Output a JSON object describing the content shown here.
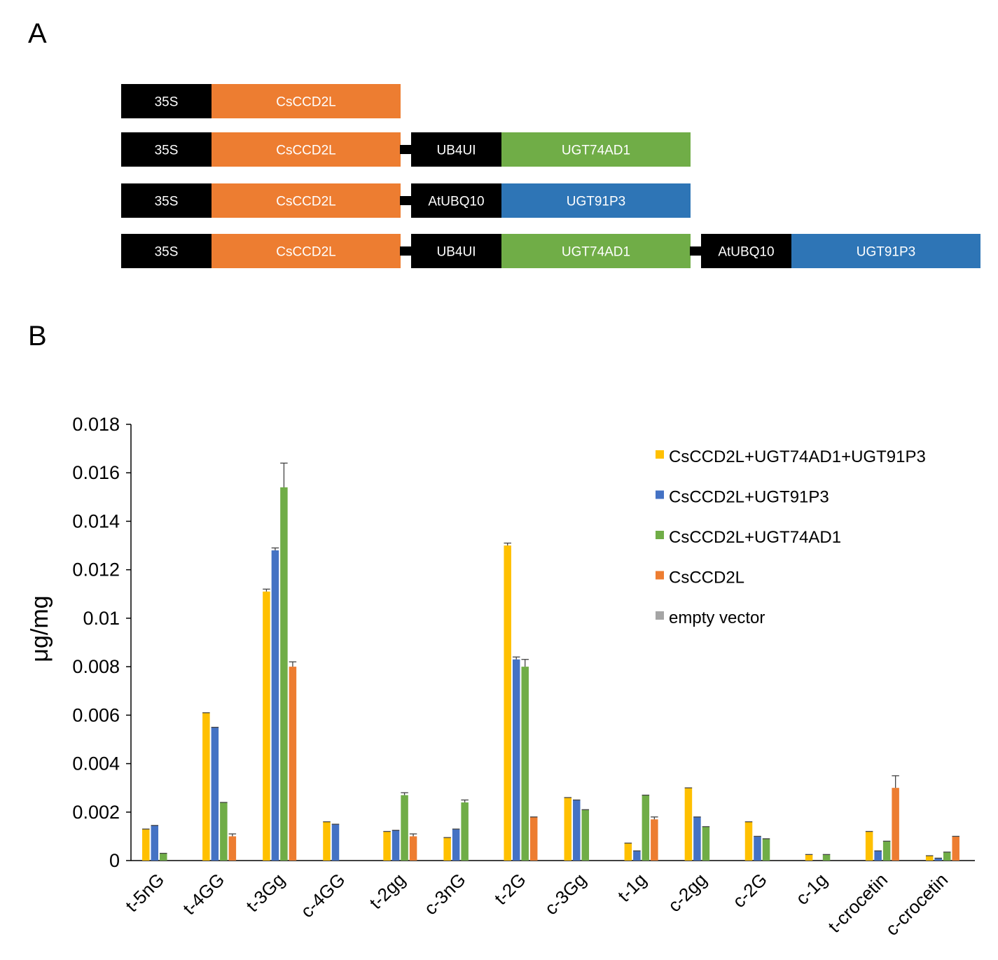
{
  "panels": {
    "a": "A",
    "b": "B"
  },
  "constructs": [
    [
      {
        "label": "35S",
        "type": "promoter"
      },
      {
        "label": "CsCCD2L",
        "type": "ccd"
      }
    ],
    [
      {
        "label": "35S",
        "type": "promoter"
      },
      {
        "label": "CsCCD2L",
        "type": "ccd"
      },
      {
        "label": "UB4UI",
        "type": "promoter"
      },
      {
        "label": "UGT74AD1",
        "type": "ugt74"
      }
    ],
    [
      {
        "label": "35S",
        "type": "promoter"
      },
      {
        "label": "CsCCD2L",
        "type": "ccd"
      },
      {
        "label": "AtUBQ10",
        "type": "promoter"
      },
      {
        "label": "UGT91P3",
        "type": "ugt91"
      }
    ],
    [
      {
        "label": "35S",
        "type": "promoter"
      },
      {
        "label": "CsCCD2L",
        "type": "ccd"
      },
      {
        "label": "UB4UI",
        "type": "promoter"
      },
      {
        "label": "UGT74AD1",
        "type": "ugt74"
      },
      {
        "label": "AtUBQ10",
        "type": "promoter"
      },
      {
        "label": "UGT91P3",
        "type": "ugt91"
      }
    ]
  ],
  "construct_colors": {
    "promoter": "#000000",
    "ccd": "#ED7D31",
    "ugt74": "#70AD47",
    "ugt91": "#2E75B6"
  },
  "chart_data": {
    "type": "bar",
    "ylabel": "μg/mg",
    "ylim": [
      0,
      0.018
    ],
    "yticks": [
      "0",
      "0.002",
      "0.004",
      "0.006",
      "0.008",
      "0.01",
      "0.012",
      "0.014",
      "0.016",
      "0.018"
    ],
    "legend_position": "top-right",
    "categories": [
      "t-5nG",
      "t-4GG",
      "t-3Gg",
      "c-4GG",
      "t-2gg",
      "c-3nG",
      "t-2G",
      "c-3Gg",
      "t-1g",
      "c-2gg",
      "c-2G",
      "c-1g",
      "t-crocetin",
      "c-crocetin"
    ],
    "series": [
      {
        "name": "CsCCD2L+UGT74AD1+UGT91P3",
        "color": "#FFC000",
        "values": [
          0.0013,
          0.0061,
          0.0111,
          0.0016,
          0.0012,
          0.00095,
          0.013,
          0.0026,
          0.00072,
          0.003,
          0.0016,
          0.00025,
          0.0012,
          0.0002
        ],
        "errors": [
          0,
          0,
          0.0001,
          0,
          0,
          0,
          0.0001,
          0,
          0,
          0,
          0,
          0,
          0,
          0
        ]
      },
      {
        "name": "CsCCD2L+UGT91P3",
        "color": "#4472C4",
        "values": [
          0.00145,
          0.0055,
          0.0128,
          0.0015,
          0.00125,
          0.0013,
          0.0083,
          0.0025,
          0.0004,
          0.0018,
          0.001,
          0,
          0.0004,
          0.0001
        ],
        "errors": [
          0,
          0,
          0.0001,
          0,
          0,
          0,
          0.0001,
          0,
          0,
          0,
          0,
          0,
          0,
          0
        ]
      },
      {
        "name": "CsCCD2L+UGT74AD1",
        "color": "#70AD47",
        "values": [
          0.0003,
          0.0024,
          0.0154,
          0,
          0.0027,
          0.0024,
          0.008,
          0.0021,
          0.0027,
          0.0014,
          0.0009,
          0.00025,
          0.0008,
          0.00035
        ],
        "errors": [
          0,
          0,
          0.001,
          0,
          0.0001,
          0.0001,
          0.0003,
          0,
          0,
          0,
          0,
          0,
          0,
          0
        ]
      },
      {
        "name": "CsCCD2L",
        "color": "#ED7D31",
        "values": [
          0,
          0.001,
          0.008,
          0,
          0.001,
          0,
          0.0018,
          0,
          0.0017,
          0,
          0,
          0,
          0.003,
          0.001
        ],
        "errors": [
          0,
          0.0001,
          0.0002,
          0,
          0.0001,
          0,
          0,
          0,
          0.0001,
          0,
          0,
          0,
          0.0005,
          0
        ]
      },
      {
        "name": "empty vector",
        "color": "#A5A5A5",
        "values": [
          0,
          0,
          0,
          0,
          0,
          0,
          0,
          0,
          0,
          0,
          0,
          0,
          0,
          0
        ],
        "errors": [
          0,
          0,
          0,
          0,
          0,
          0,
          0,
          0,
          0,
          0,
          0,
          0,
          0,
          0
        ]
      }
    ]
  }
}
